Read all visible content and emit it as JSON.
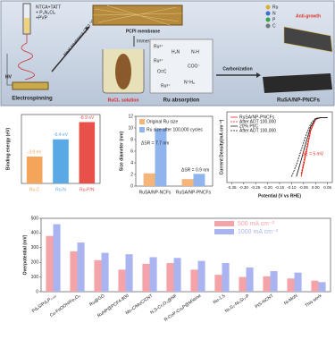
{
  "diagram": {
    "precursor": [
      "NTCA+TATT",
      "+ P₃N₃Cl₆",
      "+PVP"
    ],
    "hv": "HV",
    "electrospinning": "Electrospinning",
    "heat": "Heat treatment (250 °C)",
    "membrane": "PCPI membrane",
    "immerse": "Immerse",
    "solution": "RuCl₃ solution",
    "absorption": "Ru absorption",
    "carbonization": "Carbonization",
    "product": "RuSA/NP-PNCFs",
    "anti_growth": "Anti-growth",
    "legend": [
      "Ru",
      "N",
      "P",
      "C"
    ],
    "ions": [
      "Ru³⁺",
      "H₂N",
      "N-H",
      "O=C",
      "COO⁻",
      "Ru³⁺",
      "N⁺H₃",
      "Ru³⁺"
    ]
  },
  "chart_data": [
    {
      "type": "bar",
      "ylabel": "Binding energy (eV)",
      "categories": [
        "Ru-C",
        "Ru-N",
        "Ru-P/N"
      ],
      "values": [
        -3.9,
        -6.4,
        -8.9
      ],
      "value_labels": [
        "-3.9 eV",
        "-6.4 eV",
        "-8.9 eV"
      ],
      "colors": [
        "#f5a55a",
        "#5aa9e6",
        "#e8504a"
      ],
      "ylim": [
        0,
        -10
      ]
    },
    {
      "type": "bar",
      "ylabel": "Size diameter (nm)",
      "categories": [
        "RuSA/NP-NCFs",
        "RuSA/NP-PNCFs"
      ],
      "series": [
        {
          "name": "Original Ru size",
          "color": "#f5b47a",
          "values": [
            2.2,
            1.2
          ]
        },
        {
          "name": "Ru size after 100,000 cycles",
          "color": "#8fb4ee",
          "values": [
            9.9,
            2.1
          ]
        }
      ],
      "ylim": [
        0,
        12
      ],
      "yticks": [
        0,
        2,
        4,
        6,
        8,
        10,
        12
      ],
      "legend": "upper left",
      "annotations": [
        "ΔSR = 7.7 nm",
        "ΔSR = 0.9 nm"
      ]
    },
    {
      "type": "line",
      "xlabel": "Potential (V vs RHE)",
      "ylabel": "Current Density(mA cm⁻²)",
      "x": [
        -0.35,
        -0.3,
        -0.25,
        -0.2,
        -0.15,
        -0.1,
        -0.08,
        -0.06,
        -0.04,
        -0.02,
        0,
        0.02,
        0.05
      ],
      "series": [
        {
          "name": "RuSA/NP-PNCFs",
          "color": "#e8281e",
          "dash": false,
          "values": [
            null,
            null,
            null,
            null,
            null,
            null,
            null,
            -100,
            -62,
            -22,
            -3,
            0,
            0
          ]
        },
        {
          "name": "After ADT 100,000",
          "color": "#e8281e",
          "dash": true,
          "values": [
            null,
            null,
            null,
            null,
            null,
            null,
            null,
            -95,
            -55,
            -18,
            -2,
            0,
            0
          ]
        },
        {
          "name": "20% Pt/C",
          "color": "#222222",
          "dash": false,
          "values": [
            null,
            null,
            null,
            null,
            null,
            null,
            -100,
            -72,
            -42,
            -15,
            -2,
            0,
            0
          ]
        },
        {
          "name": "After ADT 100,000",
          "color": "#222222",
          "dash": true,
          "values": [
            null,
            null,
            null,
            null,
            null,
            -100,
            -80,
            -55,
            -30,
            -10,
            -1,
            0,
            0
          ]
        }
      ],
      "xlim": [
        -0.37,
        0.07
      ],
      "ylim": [
        -110,
        10
      ],
      "xticks": [
        -0.35,
        {
          "value": -0.3,
          "label": "-0.30"
        },
        -0.25,
        {
          "value": -0.2,
          "label": "-0.20"
        },
        -0.15,
        {
          "value": -0.1,
          "label": "-0.10"
        },
        -0.05,
        {
          "value": 0,
          "label": "0.00"
        },
        0.05
      ],
      "legend": "upper left",
      "annotations": [
        "ΔE = 5 mV"
      ]
    },
    {
      "type": "bar",
      "ylabel": "Overpotential (mV)",
      "categories": [
        "Pd₄S/Pd₃P₀.₉₅",
        "Cu-FeOOH/Fe₃O₄",
        "Ru@GO",
        "RuNP@PCF4-800",
        "Mo-C/MoC/CNT",
        "N,S-Cr₂O₃@NF",
        "R-CoP-CoₓP@MXene",
        "Ru-1.5",
        "Ni₃S₂-Ni₃Si₂-P",
        "PtS-NCNT",
        "Ni-MoN",
        "This work"
      ],
      "series": [
        {
          "name": "500 mA cm⁻²",
          "color": "#f4a3a8",
          "values": [
            380,
            275,
            215,
            150,
            190,
            195,
            150,
            115,
            100,
            105,
            90,
            75
          ]
        },
        {
          "name": "1000 mA cm⁻²",
          "color": "#aab4f0",
          "values": [
            460,
            335,
            265,
            255,
            235,
            230,
            210,
            195,
            165,
            140,
            130,
            65
          ]
        }
      ],
      "ylim": [
        0,
        500
      ],
      "yticks": [
        0,
        100,
        200,
        300,
        400,
        500
      ],
      "legend": "upper right"
    }
  ]
}
